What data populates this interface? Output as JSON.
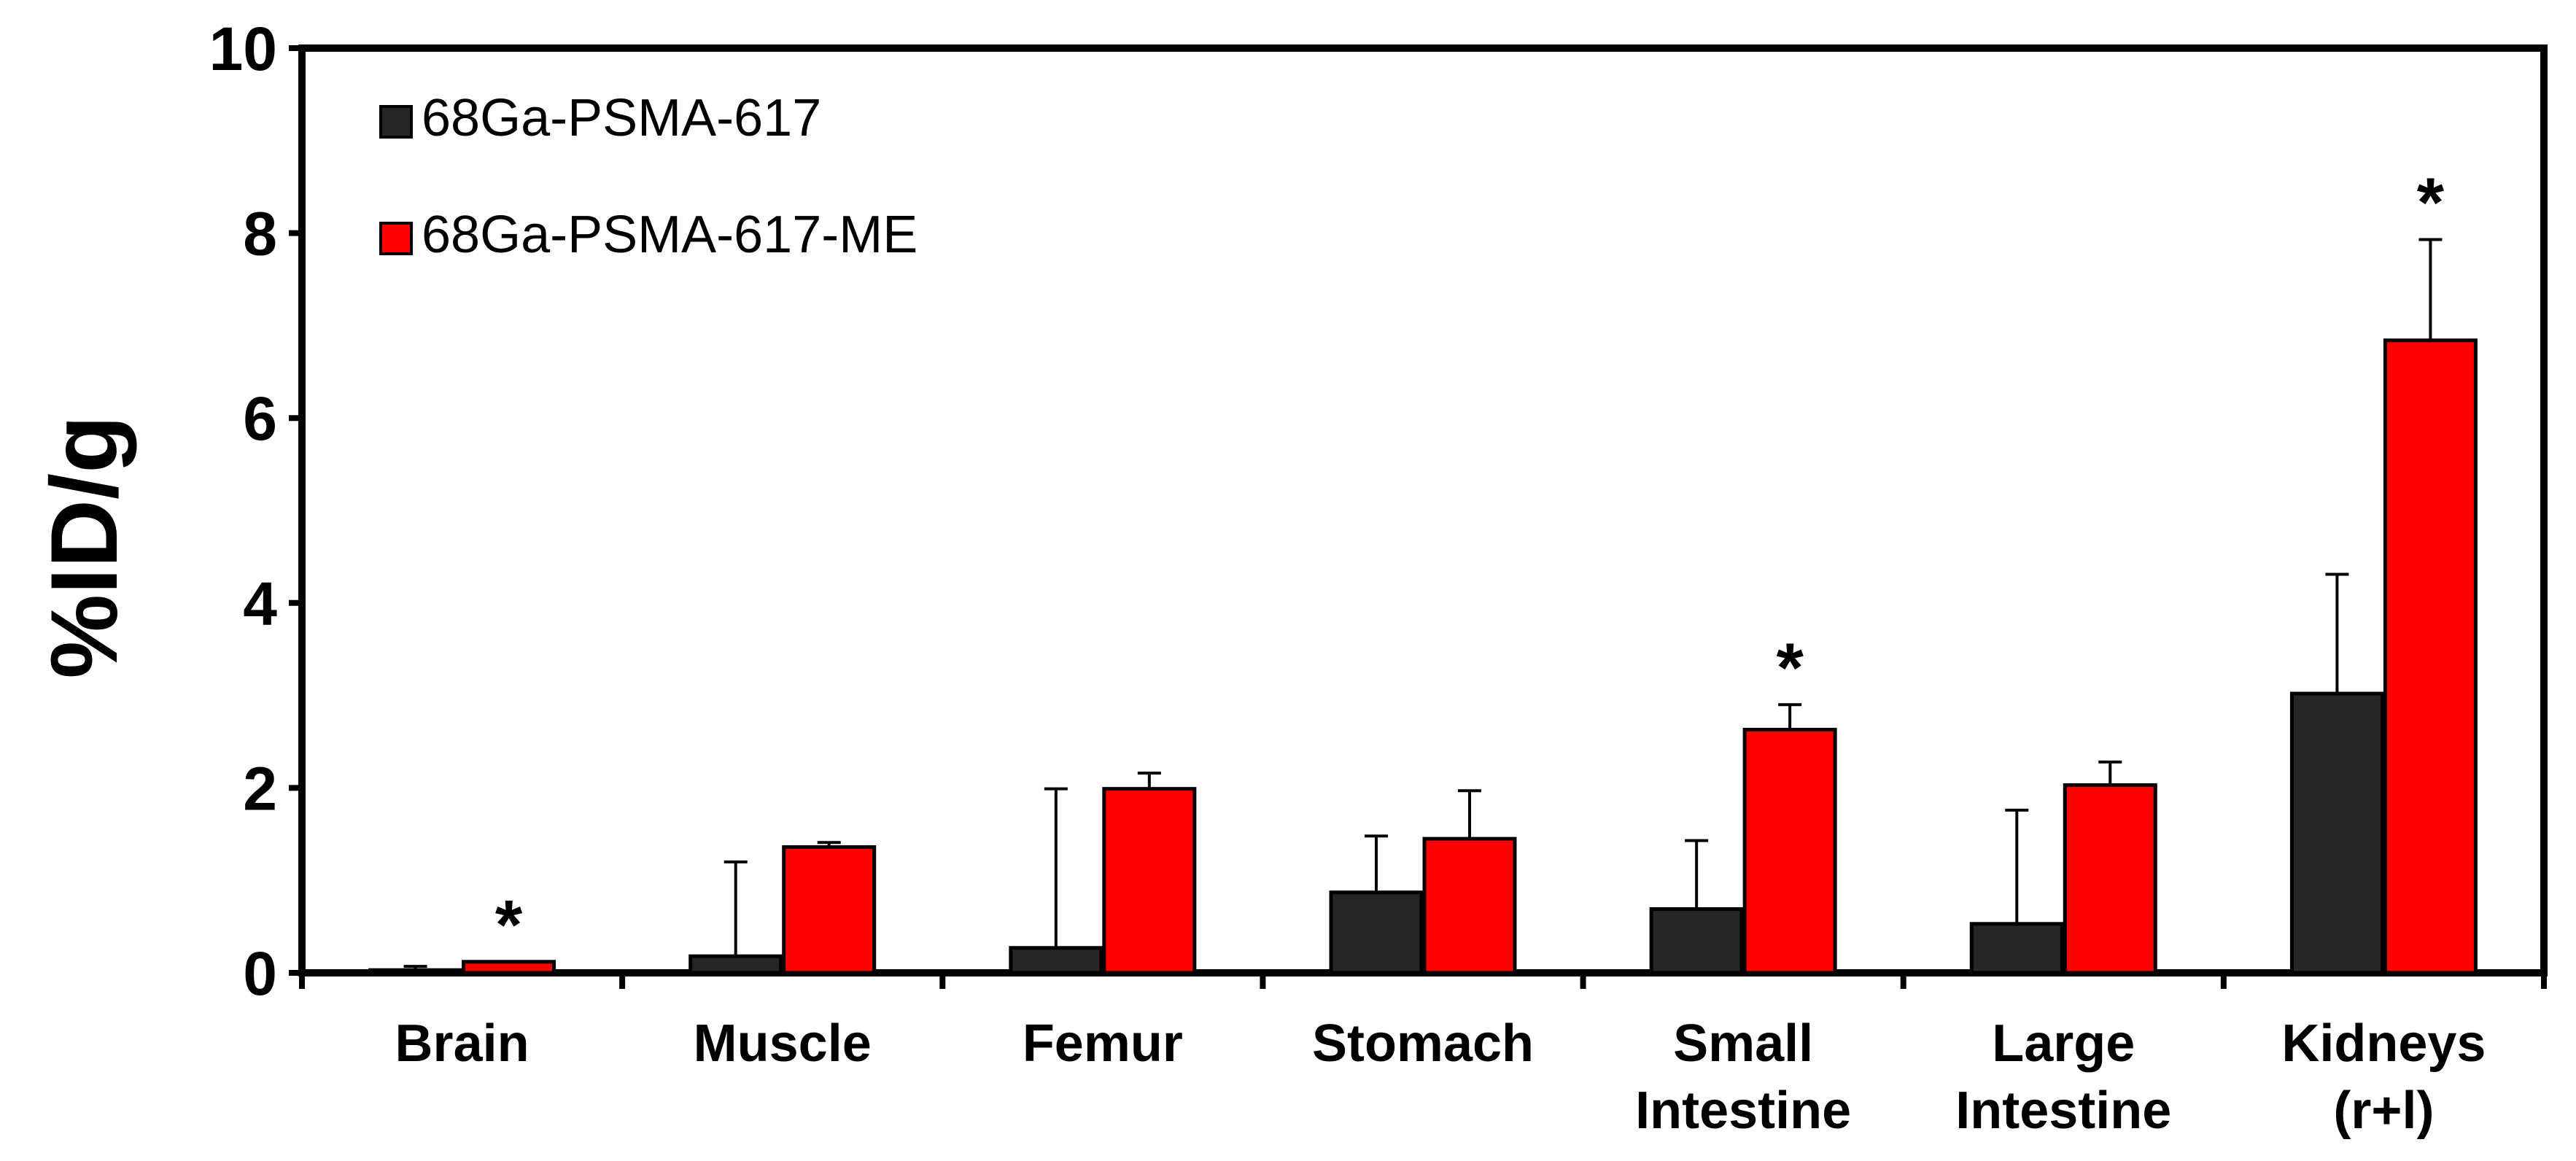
{
  "chart_data": {
    "type": "bar",
    "title": "",
    "xlabel": "",
    "ylabel": "%ID/g",
    "ylim": [
      0,
      10
    ],
    "yticks": [
      "0",
      "2",
      "4",
      "6",
      "8",
      "10"
    ],
    "categories": [
      [
        "Brain"
      ],
      [
        "Muscle"
      ],
      [
        "Femur"
      ],
      [
        "Stomach"
      ],
      [
        "Small",
        "Intestine"
      ],
      [
        "Large",
        "Intestine"
      ],
      [
        "Kidneys",
        "(r+l)"
      ]
    ],
    "series": [
      {
        "name": "68Ga-PSMA-617",
        "color": "#262626",
        "values": [
          0.03,
          0.18,
          0.27,
          0.87,
          0.69,
          0.53,
          3.02
        ],
        "errors": [
          0.04,
          1.02,
          1.72,
          0.61,
          0.74,
          1.23,
          1.29
        ]
      },
      {
        "name": "68Ga-PSMA-617-ME",
        "color": "#ff0000",
        "values": [
          0.12,
          1.36,
          1.99,
          1.45,
          2.63,
          2.03,
          6.84
        ],
        "errors": [
          0.0,
          0.05,
          0.17,
          0.52,
          0.27,
          0.25,
          1.09
        ]
      }
    ],
    "significance": [
      {
        "category": "Brain",
        "series": "68Ga-PSMA-617-ME",
        "mark": "*"
      },
      {
        "category": "Small Intestine",
        "series": "68Ga-PSMA-617-ME",
        "mark": "*"
      },
      {
        "category": "Kidneys (r+l)",
        "series": "68Ga-PSMA-617-ME",
        "mark": "*"
      }
    ],
    "legend": {
      "position": "top-left",
      "entries": [
        "68Ga-PSMA-617",
        "68Ga-PSMA-617-ME"
      ]
    },
    "grid": false
  }
}
